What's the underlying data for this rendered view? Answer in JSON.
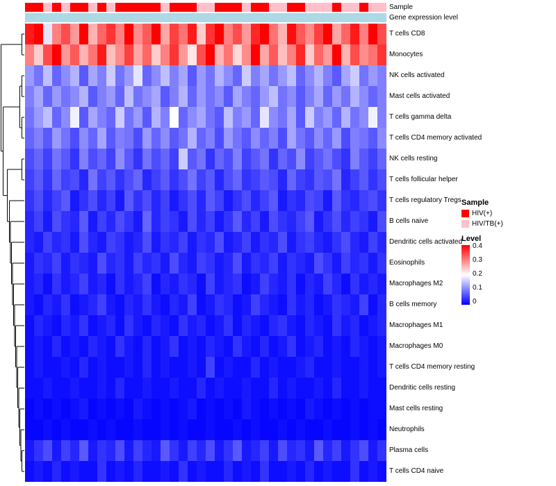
{
  "annotations": {
    "sample_label": "Sample",
    "gene_expression_label": "Gene expression level",
    "gene_expression_color": "#ADD8E6"
  },
  "legend": {
    "sample_title": "Sample",
    "sample_items": [
      {
        "label": "HIV(+)",
        "color": "#FF0000"
      },
      {
        "label": "HIV/TB(+)",
        "color": "#FFC0CB"
      }
    ],
    "level_title": "Level",
    "level_ticks": [
      "0.4",
      "0.3",
      "0.2",
      "0.1",
      "0"
    ],
    "level_gradient": [
      "#FF0000",
      "#FFFFFF",
      "#0000FF"
    ]
  },
  "chart_data": {
    "type": "heatmap",
    "title": "",
    "n_columns": 40,
    "rows": [
      "T cells CD8",
      "Monocytes",
      "NK cells activated",
      "Mast cells activated",
      "T cells gamma delta",
      "T cells CD4 memory activated",
      "NK cells resting",
      "T cells follicular helper",
      "T cells regulatory Tregs",
      "B cells naive",
      "Dendritic cells activated",
      "Eosinophils",
      "Macrophages M2",
      "B cells memory",
      "Macrophages M1",
      "Macrophages M0",
      "T cells CD4 memory resting",
      "Dendritic cells resting",
      "Mast cells resting",
      "Neutrophils",
      "Plasma cells",
      "T cells CD4 naive"
    ],
    "column_annotation": {
      "name": "Sample",
      "values": [
        "HIV(+)",
        "HIV(+)",
        "HIV/TB(+)",
        "HIV(+)",
        "HIV/TB(+)",
        "HIV(+)",
        "HIV(+)",
        "HIV/TB(+)",
        "HIV(+)",
        "HIV/TB(+)",
        "HIV(+)",
        "HIV(+)",
        "HIV(+)",
        "HIV(+)",
        "HIV(+)",
        "HIV/TB(+)",
        "HIV(+)",
        "HIV(+)",
        "HIV(+)",
        "HIV/TB(+)",
        "HIV/TB(+)",
        "HIV(+)",
        "HIV(+)",
        "HIV(+)",
        "HIV/TB(+)",
        "HIV(+)",
        "HIV(+)",
        "HIV/TB(+)",
        "HIV/TB(+)",
        "HIV(+)",
        "HIV(+)",
        "HIV/TB(+)",
        "HIV/TB(+)",
        "HIV/TB(+)",
        "HIV(+)",
        "HIV/TB(+)",
        "HIV/TB(+)",
        "HIV(+)",
        "HIV/TB(+)",
        "HIV/TB(+)"
      ]
    },
    "color_scale": {
      "min": 0,
      "mid": 0.2,
      "max": 0.4,
      "min_color": "#0000FF",
      "mid_color": "#FFFFFF",
      "max_color": "#FF0000"
    },
    "matrix": [
      [
        0.38,
        0.42,
        0.18,
        0.3,
        0.34,
        0.28,
        0.4,
        0.26,
        0.32,
        0.36,
        0.3,
        0.44,
        0.29,
        0.33,
        0.41,
        0.27,
        0.35,
        0.31,
        0.38,
        0.24,
        0.36,
        0.42,
        0.3,
        0.34,
        0.28,
        0.37,
        0.45,
        0.31,
        0.26,
        0.39,
        0.33,
        0.29,
        0.35,
        0.41,
        0.27,
        0.32,
        0.38,
        0.3,
        0.43,
        0.34
      ],
      [
        0.3,
        0.24,
        0.34,
        0.42,
        0.28,
        0.33,
        0.26,
        0.31,
        0.38,
        0.25,
        0.29,
        0.35,
        0.27,
        0.32,
        0.24,
        0.3,
        0.36,
        0.28,
        0.22,
        0.34,
        0.4,
        0.26,
        0.31,
        0.23,
        0.29,
        0.44,
        0.27,
        0.33,
        0.25,
        0.3,
        0.37,
        0.24,
        0.32,
        0.28,
        0.42,
        0.26,
        0.34,
        0.29,
        0.31,
        0.36
      ],
      [
        0.12,
        0.09,
        0.15,
        0.08,
        0.11,
        0.14,
        0.07,
        0.13,
        0.1,
        0.16,
        0.09,
        0.12,
        0.18,
        0.08,
        0.11,
        0.15,
        0.1,
        0.13,
        0.07,
        0.12,
        0.09,
        0.14,
        0.11,
        0.08,
        0.16,
        0.1,
        0.13,
        0.09,
        0.12,
        0.15,
        0.08,
        0.11,
        0.14,
        0.1,
        0.07,
        0.13,
        0.16,
        0.09,
        0.12,
        0.1
      ],
      [
        0.1,
        0.13,
        0.08,
        0.12,
        0.09,
        0.11,
        0.14,
        0.07,
        0.1,
        0.12,
        0.08,
        0.15,
        0.09,
        0.11,
        0.13,
        0.07,
        0.1,
        0.14,
        0.08,
        0.12,
        0.09,
        0.11,
        0.07,
        0.13,
        0.1,
        0.08,
        0.12,
        0.15,
        0.09,
        0.11,
        0.07,
        0.1,
        0.13,
        0.08,
        0.12,
        0.09,
        0.14,
        0.11,
        0.08,
        0.1
      ],
      [
        0.09,
        0.12,
        0.15,
        0.08,
        0.11,
        0.19,
        0.07,
        0.13,
        0.1,
        0.08,
        0.16,
        0.09,
        0.12,
        0.07,
        0.14,
        0.1,
        0.2,
        0.08,
        0.11,
        0.13,
        0.09,
        0.07,
        0.15,
        0.1,
        0.12,
        0.08,
        0.18,
        0.11,
        0.09,
        0.13,
        0.07,
        0.16,
        0.1,
        0.12,
        0.08,
        0.14,
        0.09,
        0.11,
        0.19,
        0.1
      ],
      [
        0.08,
        0.1,
        0.07,
        0.12,
        0.09,
        0.06,
        0.11,
        0.08,
        0.13,
        0.07,
        0.1,
        0.09,
        0.06,
        0.12,
        0.08,
        0.11,
        0.07,
        0.09,
        0.14,
        0.08,
        0.1,
        0.06,
        0.12,
        0.09,
        0.07,
        0.11,
        0.08,
        0.1,
        0.06,
        0.13,
        0.09,
        0.07,
        0.11,
        0.08,
        0.12,
        0.06,
        0.1,
        0.09,
        0.07,
        0.11
      ],
      [
        0.06,
        0.08,
        0.05,
        0.09,
        0.07,
        0.04,
        0.1,
        0.06,
        0.08,
        0.05,
        0.11,
        0.07,
        0.04,
        0.09,
        0.06,
        0.08,
        0.05,
        0.16,
        0.07,
        0.09,
        0.04,
        0.08,
        0.06,
        0.1,
        0.05,
        0.07,
        0.09,
        0.04,
        0.08,
        0.06,
        0.11,
        0.05,
        0.07,
        0.09,
        0.06,
        0.04,
        0.1,
        0.07,
        0.05,
        0.08
      ],
      [
        0.05,
        0.07,
        0.04,
        0.08,
        0.05,
        0.06,
        0.03,
        0.09,
        0.05,
        0.07,
        0.04,
        0.06,
        0.08,
        0.03,
        0.05,
        0.07,
        0.04,
        0.06,
        0.09,
        0.05,
        0.07,
        0.03,
        0.06,
        0.08,
        0.04,
        0.05,
        0.07,
        0.06,
        0.03,
        0.08,
        0.05,
        0.04,
        0.07,
        0.06,
        0.09,
        0.03,
        0.05,
        0.07,
        0.04,
        0.06
      ],
      [
        0.04,
        0.06,
        0.03,
        0.05,
        0.07,
        0.02,
        0.04,
        0.06,
        0.03,
        0.05,
        0.02,
        0.07,
        0.04,
        0.06,
        0.03,
        0.05,
        0.02,
        0.04,
        0.06,
        0.03,
        0.07,
        0.05,
        0.02,
        0.04,
        0.06,
        0.03,
        0.05,
        0.07,
        0.02,
        0.04,
        0.03,
        0.06,
        0.05,
        0.02,
        0.07,
        0.04,
        0.03,
        0.05,
        0.06,
        0.04
      ],
      [
        0.03,
        0.05,
        0.02,
        0.06,
        0.04,
        0.03,
        0.07,
        0.02,
        0.05,
        0.03,
        0.06,
        0.04,
        0.02,
        0.08,
        0.03,
        0.05,
        0.04,
        0.02,
        0.06,
        0.03,
        0.05,
        0.02,
        0.04,
        0.07,
        0.03,
        0.05,
        0.02,
        0.06,
        0.04,
        0.03,
        0.05,
        0.07,
        0.02,
        0.04,
        0.06,
        0.03,
        0.05,
        0.04,
        0.02,
        0.06
      ],
      [
        0.03,
        0.02,
        0.05,
        0.03,
        0.04,
        0.02,
        0.06,
        0.03,
        0.02,
        0.05,
        0.04,
        0.02,
        0.03,
        0.06,
        0.02,
        0.04,
        0.03,
        0.05,
        0.02,
        0.04,
        0.03,
        0.06,
        0.02,
        0.03,
        0.05,
        0.02,
        0.04,
        0.03,
        0.06,
        0.02,
        0.04,
        0.05,
        0.03,
        0.02,
        0.04,
        0.06,
        0.03,
        0.02,
        0.05,
        0.03
      ],
      [
        0.02,
        0.04,
        0.03,
        0.05,
        0.02,
        0.04,
        0.03,
        0.02,
        0.06,
        0.03,
        0.04,
        0.02,
        0.05,
        0.03,
        0.04,
        0.02,
        0.06,
        0.03,
        0.02,
        0.05,
        0.04,
        0.02,
        0.03,
        0.06,
        0.02,
        0.04,
        0.03,
        0.05,
        0.02,
        0.04,
        0.03,
        0.02,
        0.06,
        0.04,
        0.02,
        0.05,
        0.03,
        0.04,
        0.02,
        0.04
      ],
      [
        0.02,
        0.03,
        0.01,
        0.04,
        0.02,
        0.03,
        0.05,
        0.02,
        0.03,
        0.01,
        0.04,
        0.02,
        0.03,
        0.05,
        0.01,
        0.03,
        0.02,
        0.04,
        0.03,
        0.01,
        0.05,
        0.02,
        0.03,
        0.04,
        0.01,
        0.02,
        0.05,
        0.03,
        0.02,
        0.04,
        0.01,
        0.03,
        0.02,
        0.05,
        0.03,
        0.01,
        0.04,
        0.02,
        0.03,
        0.02
      ],
      [
        0.02,
        0.01,
        0.03,
        0.02,
        0.04,
        0.01,
        0.02,
        0.03,
        0.05,
        0.02,
        0.01,
        0.03,
        0.02,
        0.04,
        0.02,
        0.01,
        0.03,
        0.02,
        0.05,
        0.01,
        0.02,
        0.04,
        0.03,
        0.01,
        0.02,
        0.05,
        0.03,
        0.02,
        0.01,
        0.04,
        0.02,
        0.03,
        0.01,
        0.02,
        0.04,
        0.03,
        0.02,
        0.05,
        0.01,
        0.03
      ],
      [
        0.01,
        0.03,
        0.02,
        0.01,
        0.03,
        0.02,
        0.04,
        0.01,
        0.02,
        0.03,
        0.01,
        0.04,
        0.02,
        0.01,
        0.03,
        0.02,
        0.01,
        0.04,
        0.02,
        0.03,
        0.01,
        0.02,
        0.04,
        0.01,
        0.03,
        0.02,
        0.01,
        0.03,
        0.04,
        0.02,
        0.01,
        0.03,
        0.02,
        0.01,
        0.04,
        0.02,
        0.03,
        0.01,
        0.02,
        0.03
      ],
      [
        0.01,
        0.02,
        0.01,
        0.03,
        0.01,
        0.02,
        0.01,
        0.03,
        0.02,
        0.01,
        0.04,
        0.02,
        0.01,
        0.03,
        0.01,
        0.02,
        0.04,
        0.01,
        0.02,
        0.01,
        0.03,
        0.02,
        0.01,
        0.04,
        0.02,
        0.01,
        0.03,
        0.01,
        0.02,
        0.04,
        0.01,
        0.02,
        0.03,
        0.01,
        0.02,
        0.01,
        0.03,
        0.02,
        0.01,
        0.02
      ],
      [
        0.01,
        0.02,
        0.01,
        0.01,
        0.02,
        0.01,
        0.03,
        0.01,
        0.02,
        0.01,
        0.01,
        0.02,
        0.01,
        0.03,
        0.01,
        0.02,
        0.01,
        0.01,
        0.02,
        0.01,
        0.05,
        0.01,
        0.02,
        0.01,
        0.01,
        0.03,
        0.01,
        0.02,
        0.01,
        0.01,
        0.02,
        0.03,
        0.01,
        0.01,
        0.02,
        0.01,
        0.01,
        0.02,
        0.01,
        0.02
      ],
      [
        0.01,
        0.01,
        0.02,
        0.01,
        0.01,
        0.02,
        0.01,
        0.01,
        0.02,
        0.01,
        0.03,
        0.01,
        0.01,
        0.02,
        0.01,
        0.01,
        0.02,
        0.01,
        0.01,
        0.03,
        0.01,
        0.02,
        0.01,
        0.01,
        0.02,
        0.01,
        0.01,
        0.03,
        0.01,
        0.02,
        0.01,
        0.01,
        0.02,
        0.01,
        0.03,
        0.01,
        0.01,
        0.02,
        0.01,
        0.01
      ],
      [
        0.005,
        0.01,
        0.005,
        0.01,
        0.005,
        0.01,
        0.02,
        0.005,
        0.01,
        0.005,
        0.01,
        0.005,
        0.02,
        0.01,
        0.005,
        0.01,
        0.005,
        0.01,
        0.02,
        0.005,
        0.01,
        0.005,
        0.01,
        0.005,
        0.02,
        0.01,
        0.005,
        0.01,
        0.005,
        0.01,
        0.005,
        0.02,
        0.01,
        0.005,
        0.01,
        0.005,
        0.01,
        0.005,
        0.01,
        0.01
      ],
      [
        0.005,
        0.005,
        0.01,
        0.005,
        0.01,
        0.005,
        0.005,
        0.01,
        0.005,
        0.01,
        0.005,
        0.005,
        0.01,
        0.005,
        0.005,
        0.01,
        0.005,
        0.01,
        0.005,
        0.005,
        0.01,
        0.005,
        0.005,
        0.01,
        0.005,
        0.01,
        0.005,
        0.005,
        0.01,
        0.005,
        0.01,
        0.005,
        0.005,
        0.01,
        0.005,
        0.005,
        0.01,
        0.005,
        0.01,
        0.005
      ],
      [
        0.02,
        0.04,
        0.06,
        0.02,
        0.05,
        0.03,
        0.07,
        0.02,
        0.04,
        0.03,
        0.06,
        0.02,
        0.05,
        0.03,
        0.02,
        0.07,
        0.04,
        0.02,
        0.05,
        0.03,
        0.06,
        0.02,
        0.04,
        0.07,
        0.02,
        0.03,
        0.05,
        0.02,
        0.06,
        0.03,
        0.04,
        0.02,
        0.07,
        0.03,
        0.05,
        0.02,
        0.04,
        0.06,
        0.02,
        0.04
      ],
      [
        0.01,
        0.02,
        0.01,
        0.03,
        0.01,
        0.02,
        0.01,
        0.01,
        0.04,
        0.01,
        0.02,
        0.01,
        0.03,
        0.01,
        0.01,
        0.02,
        0.01,
        0.04,
        0.01,
        0.02,
        0.01,
        0.01,
        0.03,
        0.01,
        0.02,
        0.01,
        0.04,
        0.01,
        0.01,
        0.02,
        0.01,
        0.03,
        0.01,
        0.02,
        0.01,
        0.01,
        0.04,
        0.01,
        0.02,
        0.01
      ]
    ],
    "row_dendrogram": [
      [
        0,
        1
      ],
      [
        [
          [
            2,
            3
          ],
          [
            4,
            5
          ]
        ],
        [
          [
            6,
            7
          ],
          [
            8,
            [
              9,
              [
                10,
                [
                  11,
                  [
                    12,
                    [
                      13,
                      [
                        14,
                        [
                          15,
                          [
                            16,
                            [
                              17,
                              [
                                18,
                                [
                                  19,
                                  [
                                    20,
                                    21
                                  ]
                                ]
                              ]
                            ]
                          ]
                        ]
                      ]
                    ]
                  ]
                ]
              ]
            ]
          ]
        ]
      ]
    ]
  }
}
